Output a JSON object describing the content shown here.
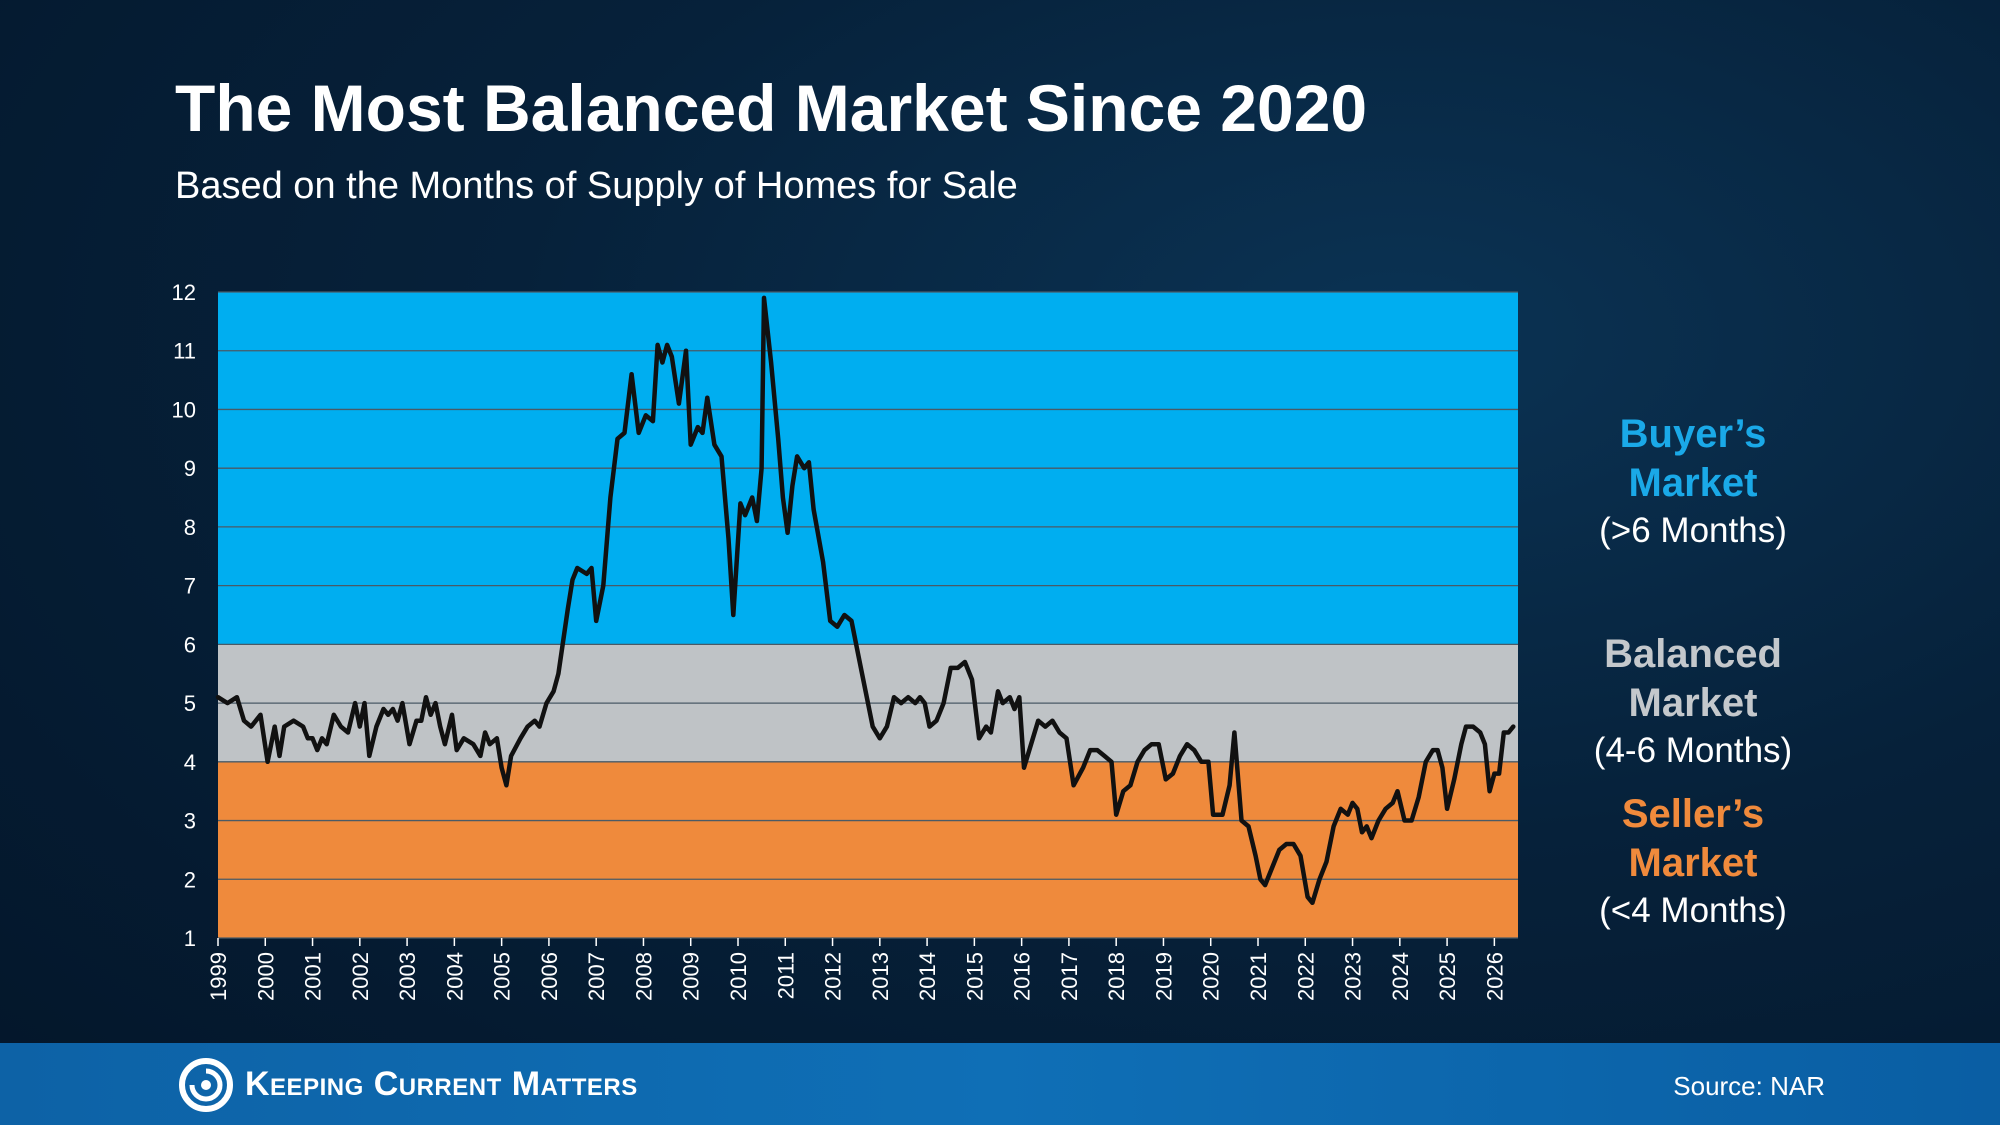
{
  "title": "The Most Balanced Market Since 2020",
  "subtitle": "Based on the Months of Supply of Homes for Sale",
  "zones": {
    "buyers": {
      "name_line1": "Buyer’s",
      "name_line2": "Market",
      "range": "(>6 Months)",
      "color": "#1aa9e8",
      "band_color": "#00aef0",
      "min": 6,
      "max": 12
    },
    "balanced": {
      "name_line1": "Balanced",
      "name_line2": "Market",
      "range": "(4-6 Months)",
      "color": "#c4c8cc",
      "band_color": "#bfc3c6",
      "min": 4,
      "max": 6
    },
    "sellers": {
      "name_line1": "Seller’s",
      "name_line2": "Market",
      "range": "(<4 Months)",
      "color": "#f08a3c",
      "band_color": "#ef8a3c",
      "min": 1,
      "max": 4
    }
  },
  "footer": {
    "logo_text": "Keeping Current Matters",
    "logo_icon": "kcm-swirl-icon",
    "source": "Source: NAR"
  },
  "chart_data": {
    "type": "line",
    "title": "The Most Balanced Market Since 2020",
    "xlabel": "",
    "ylabel": "",
    "xlim": [
      1999,
      2026.5
    ],
    "ylim": [
      1,
      12
    ],
    "yticks": [
      1,
      2,
      3,
      4,
      5,
      6,
      7,
      8,
      9,
      10,
      11,
      12
    ],
    "xticks": [
      "1999",
      "2000",
      "2001",
      "2002",
      "2003",
      "2004",
      "2005",
      "2006",
      "2007",
      "2008",
      "2009",
      "2010",
      "2011",
      "2012",
      "2013",
      "2014",
      "2015",
      "2016",
      "2017",
      "2018",
      "2019",
      "2020",
      "2021",
      "2022",
      "2023",
      "2024",
      "2025",
      "2026"
    ],
    "grid": true,
    "legend": "none",
    "series": [
      {
        "color": "#111111",
        "points": [
          [
            1999.0,
            5.1
          ],
          [
            1999.2,
            5.0
          ],
          [
            1999.4,
            5.1
          ],
          [
            1999.55,
            4.7
          ],
          [
            1999.7,
            4.6
          ],
          [
            1999.9,
            4.8
          ],
          [
            2000.05,
            4.0
          ],
          [
            2000.2,
            4.6
          ],
          [
            2000.3,
            4.1
          ],
          [
            2000.4,
            4.6
          ],
          [
            2000.6,
            4.7
          ],
          [
            2000.8,
            4.6
          ],
          [
            2000.9,
            4.4
          ],
          [
            2001.0,
            4.4
          ],
          [
            2001.1,
            4.2
          ],
          [
            2001.2,
            4.4
          ],
          [
            2001.3,
            4.3
          ],
          [
            2001.45,
            4.8
          ],
          [
            2001.6,
            4.6
          ],
          [
            2001.75,
            4.5
          ],
          [
            2001.9,
            5.0
          ],
          [
            2002.0,
            4.6
          ],
          [
            2002.1,
            5.0
          ],
          [
            2002.2,
            4.1
          ],
          [
            2002.35,
            4.6
          ],
          [
            2002.5,
            4.9
          ],
          [
            2002.6,
            4.8
          ],
          [
            2002.7,
            4.9
          ],
          [
            2002.8,
            4.7
          ],
          [
            2002.9,
            5.0
          ],
          [
            2003.05,
            4.3
          ],
          [
            2003.2,
            4.7
          ],
          [
            2003.3,
            4.7
          ],
          [
            2003.4,
            5.1
          ],
          [
            2003.5,
            4.8
          ],
          [
            2003.6,
            5.0
          ],
          [
            2003.7,
            4.6
          ],
          [
            2003.8,
            4.3
          ],
          [
            2003.95,
            4.8
          ],
          [
            2004.05,
            4.2
          ],
          [
            2004.2,
            4.4
          ],
          [
            2004.4,
            4.3
          ],
          [
            2004.55,
            4.1
          ],
          [
            2004.65,
            4.5
          ],
          [
            2004.75,
            4.3
          ],
          [
            2004.9,
            4.4
          ],
          [
            2005.0,
            3.9
          ],
          [
            2005.1,
            3.6
          ],
          [
            2005.2,
            4.1
          ],
          [
            2005.4,
            4.4
          ],
          [
            2005.55,
            4.6
          ],
          [
            2005.7,
            4.7
          ],
          [
            2005.8,
            4.6
          ],
          [
            2005.95,
            5.0
          ],
          [
            2006.1,
            5.2
          ],
          [
            2006.2,
            5.5
          ],
          [
            2006.4,
            6.6
          ],
          [
            2006.5,
            7.1
          ],
          [
            2006.6,
            7.3
          ],
          [
            2006.8,
            7.2
          ],
          [
            2006.9,
            7.3
          ],
          [
            2007.0,
            6.4
          ],
          [
            2007.15,
            7.0
          ],
          [
            2007.3,
            8.5
          ],
          [
            2007.45,
            9.5
          ],
          [
            2007.6,
            9.6
          ],
          [
            2007.75,
            10.6
          ],
          [
            2007.9,
            9.6
          ],
          [
            2008.05,
            9.9
          ],
          [
            2008.2,
            9.8
          ],
          [
            2008.3,
            11.1
          ],
          [
            2008.4,
            10.8
          ],
          [
            2008.5,
            11.1
          ],
          [
            2008.6,
            10.9
          ],
          [
            2008.75,
            10.1
          ],
          [
            2008.9,
            11.0
          ],
          [
            2009.0,
            9.4
          ],
          [
            2009.15,
            9.7
          ],
          [
            2009.25,
            9.6
          ],
          [
            2009.35,
            10.2
          ],
          [
            2009.5,
            9.4
          ],
          [
            2009.65,
            9.2
          ],
          [
            2009.8,
            7.8
          ],
          [
            2009.9,
            6.5
          ],
          [
            2010.05,
            8.4
          ],
          [
            2010.15,
            8.2
          ],
          [
            2010.3,
            8.5
          ],
          [
            2010.4,
            8.1
          ],
          [
            2010.5,
            9.0
          ],
          [
            2010.55,
            11.9
          ],
          [
            2010.7,
            10.8
          ],
          [
            2010.85,
            9.5
          ],
          [
            2010.95,
            8.5
          ],
          [
            2011.05,
            7.9
          ],
          [
            2011.15,
            8.7
          ],
          [
            2011.25,
            9.2
          ],
          [
            2011.4,
            9.0
          ],
          [
            2011.5,
            9.1
          ],
          [
            2011.6,
            8.3
          ],
          [
            2011.8,
            7.4
          ],
          [
            2011.95,
            6.4
          ],
          [
            2012.1,
            6.3
          ],
          [
            2012.25,
            6.5
          ],
          [
            2012.4,
            6.4
          ],
          [
            2012.55,
            5.8
          ],
          [
            2012.7,
            5.2
          ],
          [
            2012.85,
            4.6
          ],
          [
            2013.0,
            4.4
          ],
          [
            2013.15,
            4.6
          ],
          [
            2013.3,
            5.1
          ],
          [
            2013.45,
            5.0
          ],
          [
            2013.6,
            5.1
          ],
          [
            2013.75,
            5.0
          ],
          [
            2013.85,
            5.1
          ],
          [
            2013.95,
            5.0
          ],
          [
            2014.05,
            4.6
          ],
          [
            2014.2,
            4.7
          ],
          [
            2014.35,
            5.0
          ],
          [
            2014.5,
            5.6
          ],
          [
            2014.65,
            5.6
          ],
          [
            2014.8,
            5.7
          ],
          [
            2014.95,
            5.4
          ],
          [
            2015.1,
            4.4
          ],
          [
            2015.25,
            4.6
          ],
          [
            2015.35,
            4.5
          ],
          [
            2015.5,
            5.2
          ],
          [
            2015.6,
            5.0
          ],
          [
            2015.75,
            5.1
          ],
          [
            2015.85,
            4.9
          ],
          [
            2015.95,
            5.1
          ],
          [
            2016.05,
            3.9
          ],
          [
            2016.2,
            4.3
          ],
          [
            2016.35,
            4.7
          ],
          [
            2016.5,
            4.6
          ],
          [
            2016.65,
            4.7
          ],
          [
            2016.8,
            4.5
          ],
          [
            2016.95,
            4.4
          ],
          [
            2017.1,
            3.6
          ],
          [
            2017.3,
            3.9
          ],
          [
            2017.45,
            4.2
          ],
          [
            2017.6,
            4.2
          ],
          [
            2017.75,
            4.1
          ],
          [
            2017.9,
            4.0
          ],
          [
            2018.0,
            3.1
          ],
          [
            2018.15,
            3.5
          ],
          [
            2018.3,
            3.6
          ],
          [
            2018.45,
            4.0
          ],
          [
            2018.6,
            4.2
          ],
          [
            2018.75,
            4.3
          ],
          [
            2018.9,
            4.3
          ],
          [
            2019.05,
            3.7
          ],
          [
            2019.2,
            3.8
          ],
          [
            2019.35,
            4.1
          ],
          [
            2019.5,
            4.3
          ],
          [
            2019.65,
            4.2
          ],
          [
            2019.8,
            4.0
          ],
          [
            2019.95,
            4.0
          ],
          [
            2020.05,
            3.1
          ],
          [
            2020.25,
            3.1
          ],
          [
            2020.4,
            3.6
          ],
          [
            2020.5,
            4.5
          ],
          [
            2020.65,
            3.0
          ],
          [
            2020.8,
            2.9
          ],
          [
            2020.95,
            2.4
          ],
          [
            2021.05,
            2.0
          ],
          [
            2021.15,
            1.9
          ],
          [
            2021.3,
            2.2
          ],
          [
            2021.45,
            2.5
          ],
          [
            2021.6,
            2.6
          ],
          [
            2021.75,
            2.6
          ],
          [
            2021.9,
            2.4
          ],
          [
            2022.05,
            1.7
          ],
          [
            2022.15,
            1.6
          ],
          [
            2022.3,
            2.0
          ],
          [
            2022.45,
            2.3
          ],
          [
            2022.6,
            2.9
          ],
          [
            2022.75,
            3.2
          ],
          [
            2022.9,
            3.1
          ],
          [
            2023.0,
            3.3
          ],
          [
            2023.1,
            3.2
          ],
          [
            2023.2,
            2.8
          ],
          [
            2023.3,
            2.9
          ],
          [
            2023.4,
            2.7
          ],
          [
            2023.55,
            3.0
          ],
          [
            2023.7,
            3.2
          ],
          [
            2023.85,
            3.3
          ],
          [
            2023.95,
            3.5
          ],
          [
            2024.1,
            3.0
          ],
          [
            2024.25,
            3.0
          ],
          [
            2024.4,
            3.4
          ],
          [
            2024.55,
            4.0
          ],
          [
            2024.7,
            4.2
          ],
          [
            2024.8,
            4.2
          ],
          [
            2024.9,
            3.9
          ],
          [
            2025.0,
            3.2
          ],
          [
            2025.15,
            3.7
          ],
          [
            2025.3,
            4.3
          ],
          [
            2025.4,
            4.6
          ],
          [
            2025.55,
            4.6
          ],
          [
            2025.7,
            4.5
          ],
          [
            2025.8,
            4.3
          ],
          [
            2025.9,
            3.5
          ],
          [
            2026.0,
            3.8
          ],
          [
            2026.1,
            3.8
          ],
          [
            2026.2,
            4.5
          ],
          [
            2026.3,
            4.5
          ],
          [
            2026.4,
            4.6
          ]
        ]
      }
    ]
  }
}
